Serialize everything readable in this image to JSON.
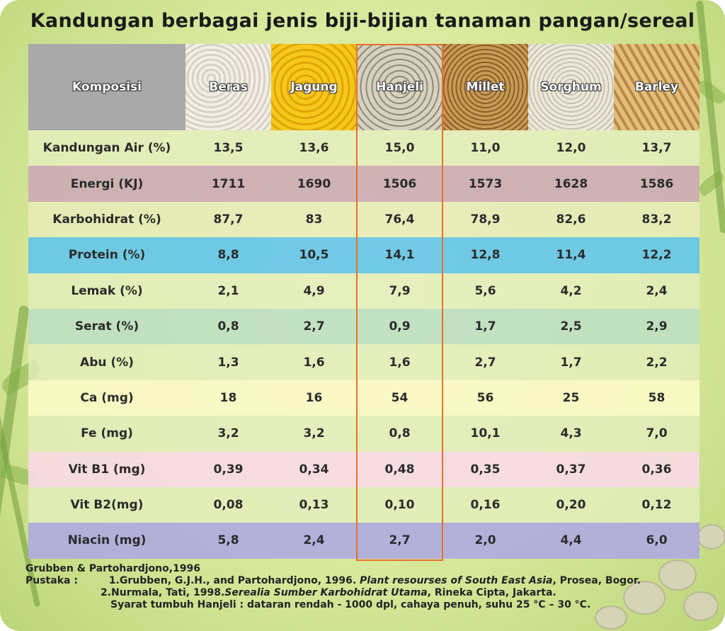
{
  "title": "Kandungan berbagai jenis biji-bijian tanaman pangan/sereal",
  "header": {
    "komposisi": "Komposisi",
    "columns": [
      "Beras",
      "Jagung",
      "Hanjeli",
      "Millet",
      "Sorghum",
      "Barley"
    ]
  },
  "rows": [
    {
      "label": "Kandungan Air (%)",
      "values": [
        "13,5",
        "13,6",
        "15,0",
        "11,0",
        "12,0",
        "13,7"
      ]
    },
    {
      "label": "Energi (KJ)",
      "values": [
        "1711",
        "1690",
        "1506",
        "1573",
        "1628",
        "1586"
      ]
    },
    {
      "label": "Karbohidrat (%)",
      "values": [
        "87,7",
        "83",
        "76,4",
        "78,9",
        "82,6",
        "83,2"
      ]
    },
    {
      "label": "Protein (%)",
      "values": [
        "8,8",
        "10,5",
        "14,1",
        "12,8",
        "11,4",
        "12,2"
      ]
    },
    {
      "label": "Lemak (%)",
      "values": [
        "2,1",
        "4,9",
        "7,9",
        "5,6",
        "4,2",
        "2,4"
      ]
    },
    {
      "label": "Serat (%)",
      "values": [
        "0,8",
        "2,7",
        "0,9",
        "1,7",
        "2,5",
        "2,9"
      ]
    },
    {
      "label": "Abu (%)",
      "values": [
        "1,3",
        "1,6",
        "1,6",
        "2,7",
        "1,7",
        "2,2"
      ]
    },
    {
      "label": "Ca (mg)",
      "values": [
        "18",
        "16",
        "54",
        "56",
        "25",
        "58"
      ]
    },
    {
      "label": "Fe (mg)",
      "values": [
        "3,2",
        "3,2",
        "0,8",
        "10,1",
        "4,3",
        "7,0"
      ]
    },
    {
      "label": "Vit B1 (mg)",
      "values": [
        "0,39",
        "0,34",
        "0,48",
        "0,35",
        "0,37",
        "0,36"
      ]
    },
    {
      "label": "Vit B2(mg)",
      "values": [
        "0,08",
        "0,13",
        "0,10",
        "0,16",
        "0,20",
        "0,12"
      ]
    },
    {
      "label": "Niacin (mg)",
      "values": [
        "5,8",
        "2,4",
        "2,7",
        "2,0",
        "4,4",
        "6,0"
      ]
    }
  ],
  "highlight_column": "Hanjeli",
  "footer": {
    "source": "Grubben & Partohardjono,1996",
    "pustaka_label": "Pustaka :",
    "ref1_pre": "1.Grubben, G.J.H.,  and  Partohardjono, 1996. ",
    "ref1_title": "Plant resourses of South East Asia",
    "ref1_post": ", Prosea, Bogor.",
    "ref2_pre": "2.Nurmala, Tati, 1998.",
    "ref2_title": "Serealia Sumber Karbohidrat Utama",
    "ref2_post": ", Rineka Cipta, Jakarta.",
    "syarat": "Syarat tumbuh Hanjeli : dataran rendah - 1000 dpl, cahaya penuh, suhu 25 °C – 30 °C."
  }
}
